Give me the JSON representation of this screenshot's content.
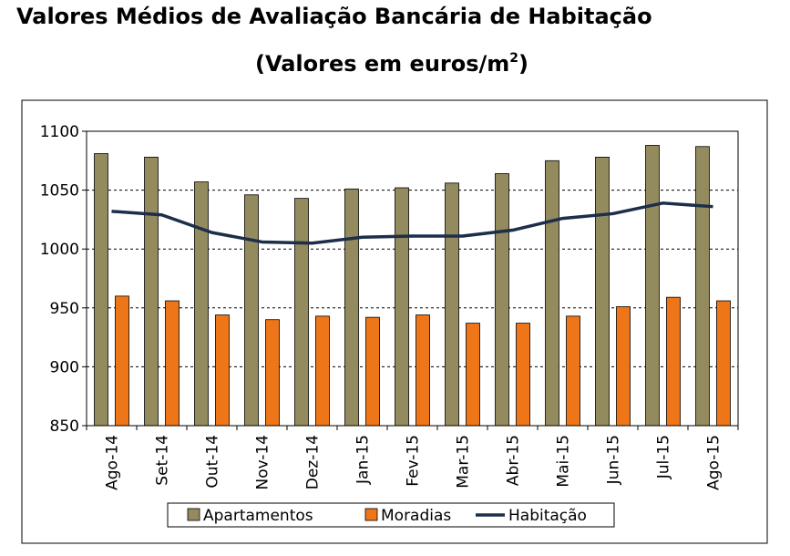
{
  "title": "Valores Médios de Avaliação Bancária de Habitação",
  "subtitle": "(Valores em euros/m",
  "subtitle_sup": "2",
  "subtitle_close": ")",
  "colors": {
    "apartamentos": "#938A5E",
    "moradias": "#EE7618",
    "habitacao": "#1C2E4A"
  },
  "chart_data": {
    "type": "bar",
    "title": "Valores Médios de Avaliação Bancária de Habitação",
    "subtitle": "(Valores em euros/m2)",
    "xlabel": "",
    "ylabel": "",
    "ylim": [
      850,
      1100
    ],
    "yticks": [
      850,
      900,
      950,
      1000,
      1050,
      1100
    ],
    "ytick_labels": [
      "850",
      "900",
      "950",
      "1000",
      "1050",
      "1100"
    ],
    "grid": true,
    "legend_position": "bottom",
    "categories": [
      "Ago-14",
      "Set-14",
      "Out-14",
      "Nov-14",
      "Dez-14",
      "Jan-15",
      "Fev-15",
      "Mar-15",
      "Abr-15",
      "Mai-15",
      "Jun-15",
      "Jul-15",
      "Ago-15"
    ],
    "series": [
      {
        "name": "Apartamentos",
        "kind": "bar",
        "values": [
          1081,
          1078,
          1057,
          1046,
          1043,
          1051,
          1052,
          1056,
          1064,
          1075,
          1078,
          1088,
          1087
        ]
      },
      {
        "name": "Moradias",
        "kind": "bar",
        "values": [
          960,
          956,
          944,
          940,
          943,
          942,
          944,
          937,
          937,
          943,
          951,
          959,
          956
        ]
      },
      {
        "name": "Habitação",
        "kind": "line",
        "values": [
          1032,
          1029,
          1014,
          1006,
          1005,
          1010,
          1011,
          1011,
          1016,
          1026,
          1030,
          1039,
          1036
        ]
      }
    ]
  }
}
